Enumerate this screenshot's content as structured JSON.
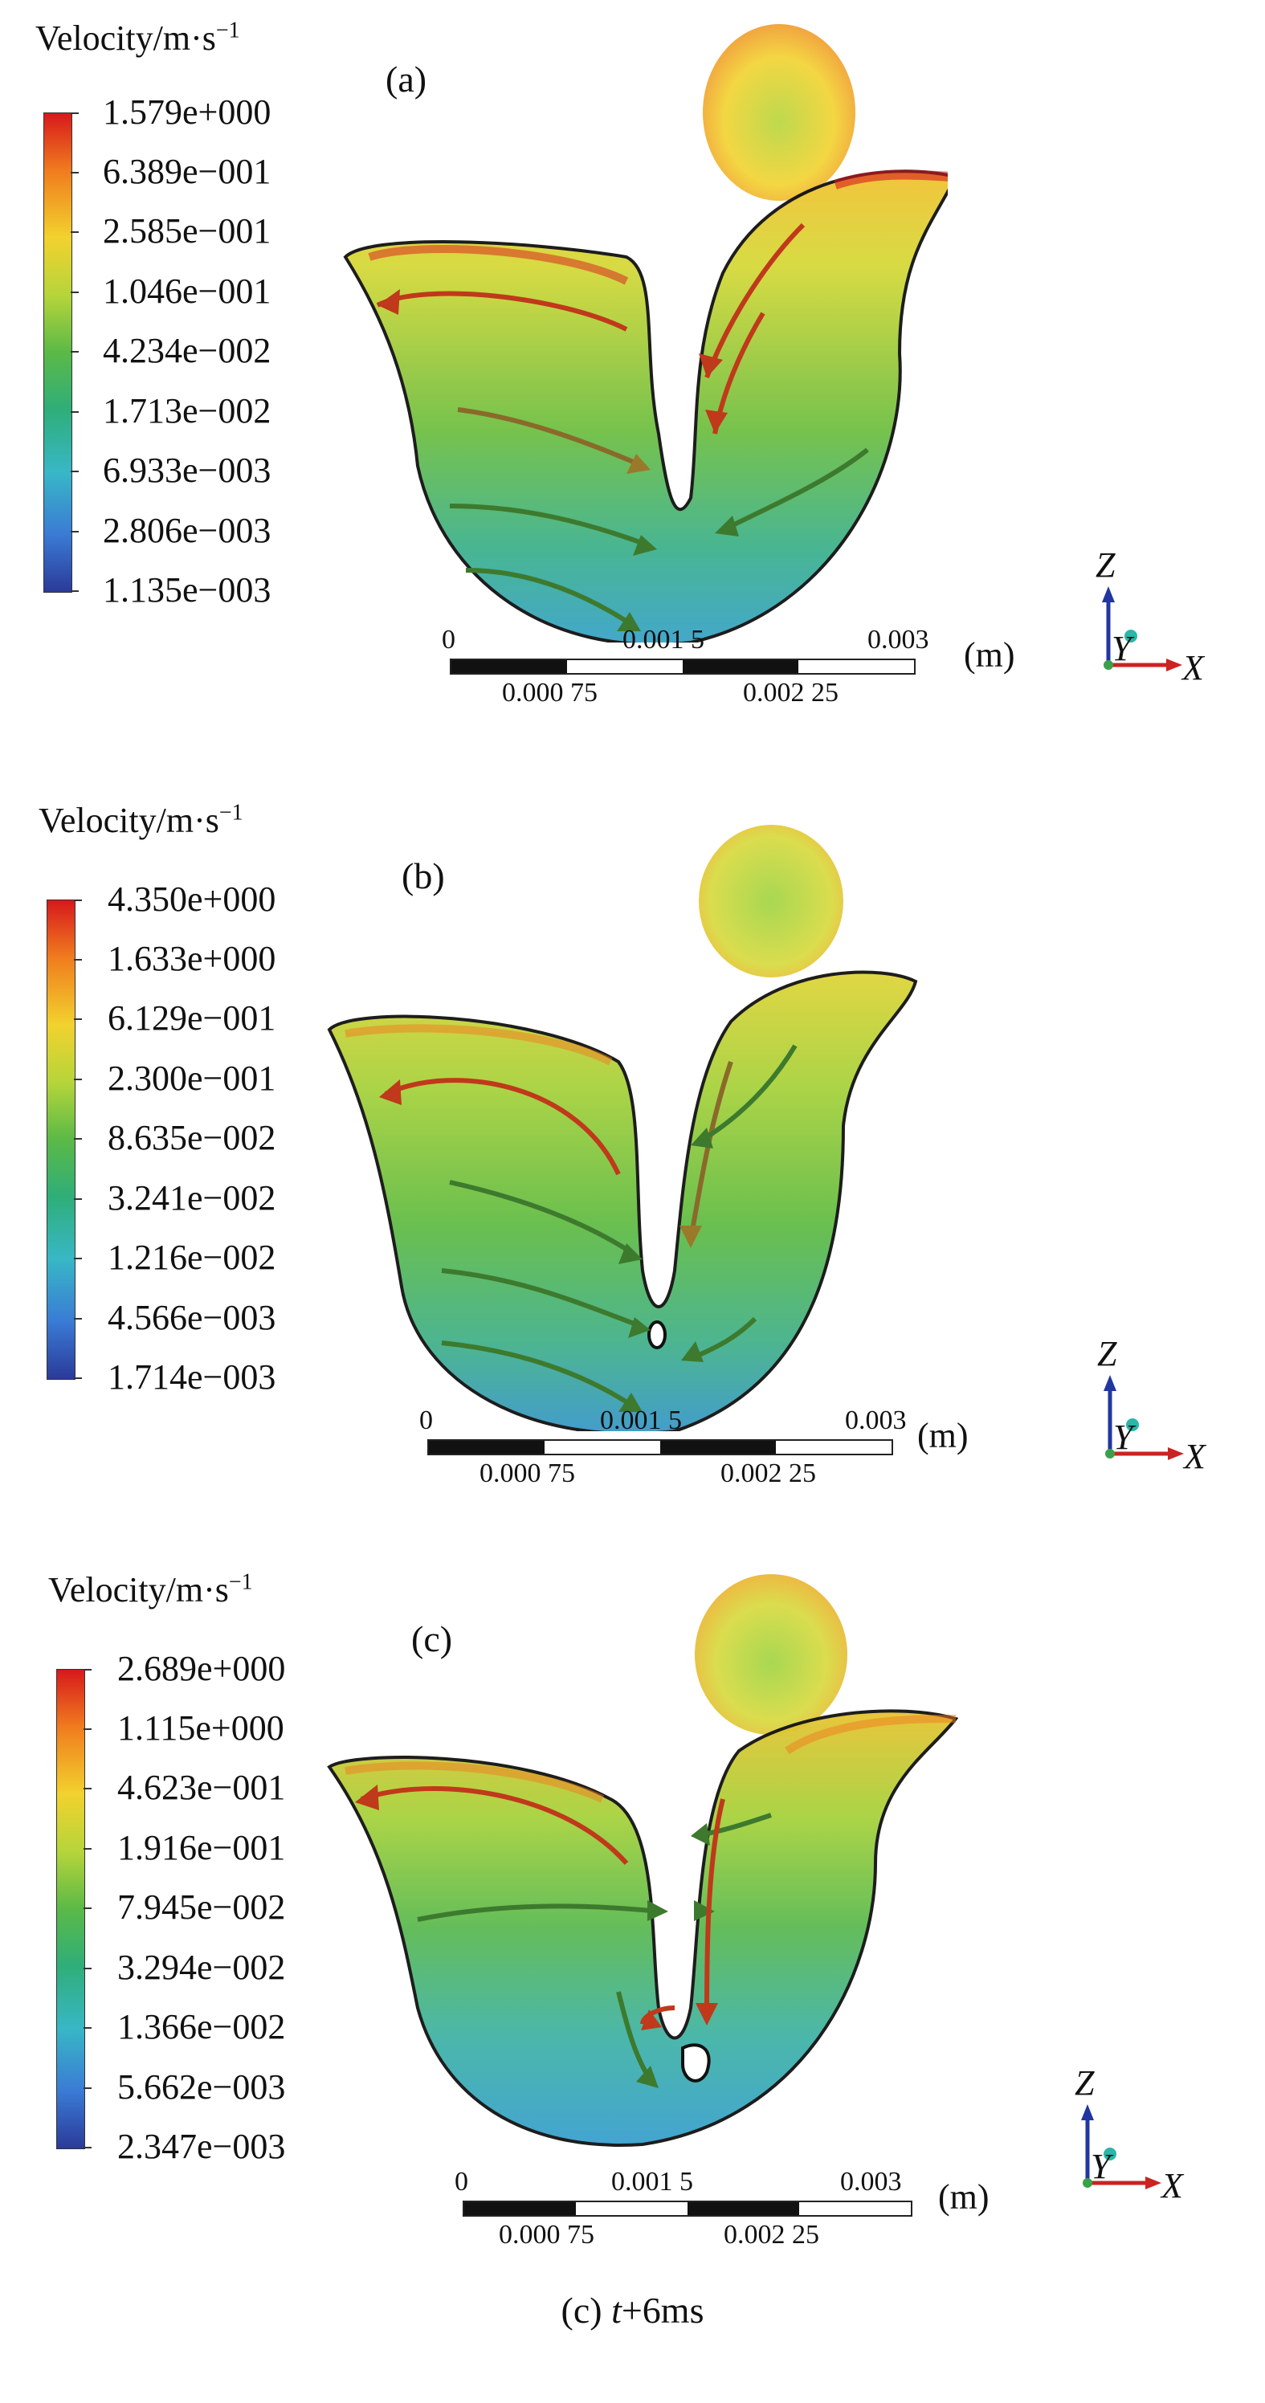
{
  "legend_title": "Velocity/m·s",
  "legend_title_exp": "−1",
  "panels": [
    {
      "label": "(a)",
      "ticks": [
        "1.579e+000",
        "6.389e−001",
        "2.585e−001",
        "1.046e−001",
        "4.234e−002",
        "1.713e−002",
        "6.933e−003",
        "2.806e−003",
        "1.135e−003"
      ]
    },
    {
      "label": "(b)",
      "ticks": [
        "4.350e+000",
        "1.633e+000",
        "6.129e−001",
        "2.300e−001",
        "8.635e−002",
        "3.241e−002",
        "1.216e−002",
        "4.566e−003",
        "1.714e−003"
      ]
    },
    {
      "label": "(c)",
      "ticks": [
        "2.689e+000",
        "1.115e+000",
        "4.623e−001",
        "1.916e−001",
        "7.945e−002",
        "3.294e−002",
        "1.366e−002",
        "5.662e−003",
        "2.347e−003"
      ]
    }
  ],
  "scale_bar": {
    "top_labels": [
      "0",
      "0.001 5",
      "0.003"
    ],
    "bottom_labels": [
      "0.000 75",
      "0.002 25"
    ],
    "unit": "(m)"
  },
  "axes": {
    "z": "Z",
    "y": "Y",
    "x": "X"
  },
  "caption": {
    "prefix": "(c) ",
    "t": "t",
    "suffix": "+6ms"
  },
  "colors": {
    "high": "#d7191c",
    "mid_high": "#f2d22e",
    "mid": "#5bb947",
    "low": "#2b3a99",
    "outline": "#111111",
    "arrow_red": "#c0391b",
    "arrow_green": "#3d7a2e"
  }
}
